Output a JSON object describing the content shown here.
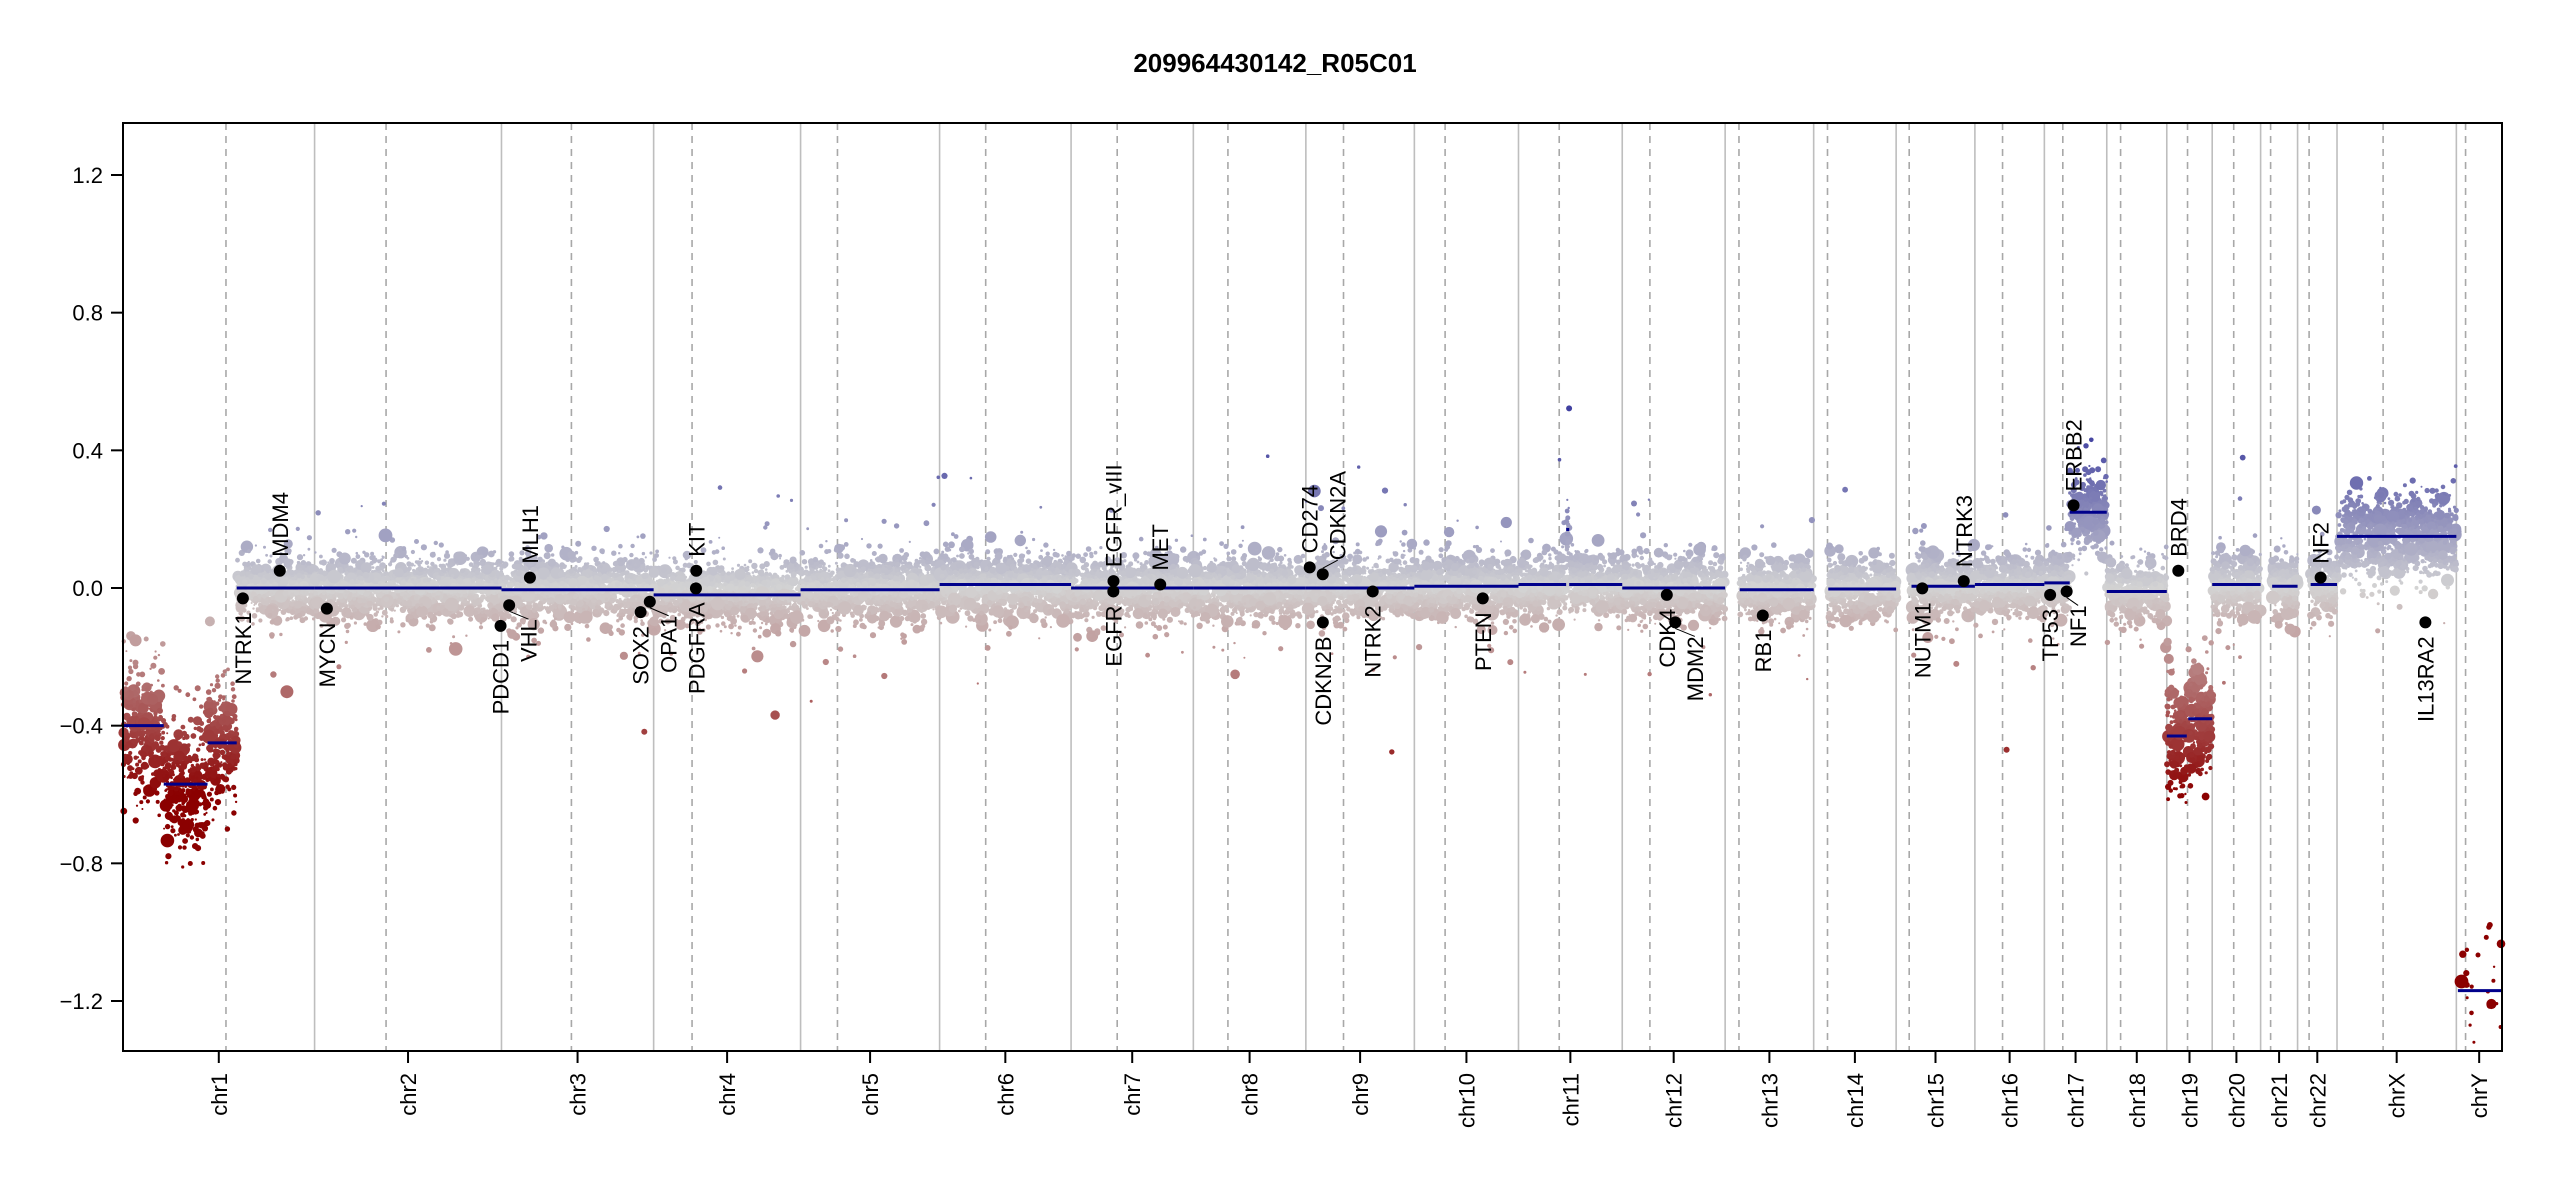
{
  "chart_data": {
    "type": "scatter",
    "title": "209964430142_R05C01",
    "xlabel": "",
    "ylabel": "",
    "ylim": [
      -1.35,
      1.35
    ],
    "yticks": [
      1.2,
      0.8,
      0.4,
      0.0,
      -0.4,
      -0.8,
      -1.2
    ],
    "ytick_labels": [
      "1.2",
      "0.8",
      "0.4",
      "0.0",
      "−0.4",
      "−0.8",
      "−1.2"
    ],
    "grid": false,
    "chromosomes": [
      {
        "name": "chr1",
        "length_mb": 249.3,
        "centromere_mb": 134
      },
      {
        "name": "chr2",
        "length_mb": 243.2,
        "centromere_mb": 93
      },
      {
        "name": "chr3",
        "length_mb": 198.0,
        "centromere_mb": 91
      },
      {
        "name": "chr4",
        "length_mb": 191.2,
        "centromere_mb": 50
      },
      {
        "name": "chr5",
        "length_mb": 180.9,
        "centromere_mb": 48
      },
      {
        "name": "chr6",
        "length_mb": 171.1,
        "centromere_mb": 60
      },
      {
        "name": "chr7",
        "length_mb": 159.1,
        "centromere_mb": 60
      },
      {
        "name": "chr8",
        "length_mb": 146.4,
        "centromere_mb": 45
      },
      {
        "name": "chr9",
        "length_mb": 141.2,
        "centromere_mb": 49
      },
      {
        "name": "chr10",
        "length_mb": 135.5,
        "centromere_mb": 40
      },
      {
        "name": "chr11",
        "length_mb": 135.0,
        "centromere_mb": 53
      },
      {
        "name": "chr12",
        "length_mb": 133.9,
        "centromere_mb": 36
      },
      {
        "name": "chr13",
        "length_mb": 115.2,
        "centromere_mb": 18
      },
      {
        "name": "chr14",
        "length_mb": 107.3,
        "centromere_mb": 18
      },
      {
        "name": "chr15",
        "length_mb": 102.5,
        "centromere_mb": 17
      },
      {
        "name": "chr16",
        "length_mb": 90.4,
        "centromere_mb": 36
      },
      {
        "name": "chr17",
        "length_mb": 81.2,
        "centromere_mb": 24
      },
      {
        "name": "chr18",
        "length_mb": 78.1,
        "centromere_mb": 18
      },
      {
        "name": "chr19",
        "length_mb": 59.1,
        "centromere_mb": 27
      },
      {
        "name": "chr20",
        "length_mb": 63.0,
        "centromere_mb": 28
      },
      {
        "name": "chr21",
        "length_mb": 48.1,
        "centromere_mb": 13
      },
      {
        "name": "chr22",
        "length_mb": 51.3,
        "centromere_mb": 15
      },
      {
        "name": "chrX",
        "length_mb": 155.3,
        "centromere_mb": 60
      },
      {
        "name": "chrY",
        "length_mb": 59.4,
        "centromere_mb": 12
      }
    ],
    "segments": [
      {
        "chr": "chr1",
        "start": 0,
        "end": 53,
        "mean": -0.4
      },
      {
        "chr": "chr1",
        "start": 53,
        "end": 110,
        "mean": -0.57
      },
      {
        "chr": "chr1",
        "start": 110,
        "end": 148,
        "mean": -0.45
      },
      {
        "chr": "chr1",
        "start": 148,
        "end": 249.3,
        "mean": 0.0
      },
      {
        "chr": "chr2",
        "start": 0,
        "end": 243.2,
        "mean": 0.0
      },
      {
        "chr": "chr3",
        "start": 0,
        "end": 198.0,
        "mean": -0.005
      },
      {
        "chr": "chr4",
        "start": 0,
        "end": 191.2,
        "mean": -0.02
      },
      {
        "chr": "chr5",
        "start": 0,
        "end": 180.9,
        "mean": -0.005
      },
      {
        "chr": "chr6",
        "start": 0,
        "end": 171.1,
        "mean": 0.01
      },
      {
        "chr": "chr7",
        "start": 0,
        "end": 159.1,
        "mean": 0.0
      },
      {
        "chr": "chr8",
        "start": 0,
        "end": 146.4,
        "mean": 0.0
      },
      {
        "chr": "chr9",
        "start": 0,
        "end": 141.2,
        "mean": 0.0
      },
      {
        "chr": "chr10",
        "start": 0,
        "end": 135.5,
        "mean": 0.005
      },
      {
        "chr": "chr11",
        "start": 0,
        "end": 62,
        "mean": 0.01
      },
      {
        "chr": "chr11",
        "start": 62,
        "end": 66,
        "mean": 0.17
      },
      {
        "chr": "chr11",
        "start": 66,
        "end": 135.0,
        "mean": 0.01
      },
      {
        "chr": "chr12",
        "start": 0,
        "end": 133.9,
        "mean": 0.0
      },
      {
        "chr": "chr13",
        "start": 19,
        "end": 115.2,
        "mean": -0.005
      },
      {
        "chr": "chr14",
        "start": 19,
        "end": 107.3,
        "mean": -0.003
      },
      {
        "chr": "chr15",
        "start": 20,
        "end": 102.5,
        "mean": 0.005
      },
      {
        "chr": "chr16",
        "start": 0,
        "end": 90.4,
        "mean": 0.01
      },
      {
        "chr": "chr17",
        "start": 0,
        "end": 33,
        "mean": 0.015
      },
      {
        "chr": "chr17",
        "start": 33,
        "end": 81.2,
        "mean": 0.22
      },
      {
        "chr": "chr18",
        "start": 0,
        "end": 78.1,
        "mean": -0.01
      },
      {
        "chr": "chr19",
        "start": 0,
        "end": 26,
        "mean": -0.43
      },
      {
        "chr": "chr19",
        "start": 28,
        "end": 59.1,
        "mean": -0.38
      },
      {
        "chr": "chr20",
        "start": 0,
        "end": 63.0,
        "mean": 0.01
      },
      {
        "chr": "chr21",
        "start": 15,
        "end": 48.1,
        "mean": 0.005
      },
      {
        "chr": "chr22",
        "start": 17,
        "end": 51.3,
        "mean": 0.01
      },
      {
        "chr": "chrX",
        "start": 0,
        "end": 155.3,
        "mean": 0.15
      },
      {
        "chr": "chrY",
        "start": 2,
        "end": 59.4,
        "mean": -1.17
      }
    ],
    "genes": [
      {
        "name": "NTRK1",
        "chr": "chr1",
        "pos": 156,
        "value": -0.03
      },
      {
        "name": "MDM4",
        "chr": "chr1",
        "pos": 204,
        "value": 0.05
      },
      {
        "name": "MYCN",
        "chr": "chr2",
        "pos": 16,
        "value": -0.06
      },
      {
        "name": "PDCD1",
        "chr": "chr2",
        "pos": 242,
        "value": -0.11
      },
      {
        "name": "VHL",
        "chr": "chr3",
        "pos": 10,
        "value": -0.05
      },
      {
        "name": "MLH1",
        "chr": "chr3",
        "pos": 37,
        "value": 0.03
      },
      {
        "name": "SOX2",
        "chr": "chr3",
        "pos": 181,
        "value": -0.07
      },
      {
        "name": "OPA1",
        "chr": "chr3",
        "pos": 193,
        "value": -0.04
      },
      {
        "name": "PDGFRA",
        "chr": "chr4",
        "pos": 55,
        "value": -0.001
      },
      {
        "name": "KIT",
        "chr": "chr4",
        "pos": 55.5,
        "value": 0.05
      },
      {
        "name": "EGFR",
        "chr": "chr7",
        "pos": 55,
        "value": -0.01
      },
      {
        "name": "EGFR_vIII",
        "chr": "chr7",
        "pos": 55.2,
        "value": 0.02
      },
      {
        "name": "MET",
        "chr": "chr7",
        "pos": 116,
        "value": 0.01
      },
      {
        "name": "CD274",
        "chr": "chr9",
        "pos": 5,
        "value": 0.06
      },
      {
        "name": "CDKN2A",
        "chr": "chr9",
        "pos": 22,
        "value": 0.04
      },
      {
        "name": "CDKN2B",
        "chr": "chr9",
        "pos": 22.1,
        "value": -0.1
      },
      {
        "name": "NTRK2",
        "chr": "chr9",
        "pos": 87,
        "value": -0.01
      },
      {
        "name": "PTEN",
        "chr": "chr10",
        "pos": 89,
        "value": -0.03
      },
      {
        "name": "CDK4",
        "chr": "chr12",
        "pos": 58,
        "value": -0.02
      },
      {
        "name": "MDM2",
        "chr": "chr12",
        "pos": 69,
        "value": -0.1
      },
      {
        "name": "RB1",
        "chr": "chr13",
        "pos": 49,
        "value": -0.08
      },
      {
        "name": "NUTM1",
        "chr": "chr15",
        "pos": 34,
        "value": -0.001
      },
      {
        "name": "NTRK3",
        "chr": "chr15",
        "pos": 88,
        "value": 0.02
      },
      {
        "name": "TP53",
        "chr": "chr17",
        "pos": 7.5,
        "value": -0.02
      },
      {
        "name": "NF1",
        "chr": "chr17",
        "pos": 29,
        "value": -0.01
      },
      {
        "name": "ERBB2",
        "chr": "chr17",
        "pos": 38,
        "value": 0.24
      },
      {
        "name": "BRD4",
        "chr": "chr19",
        "pos": 15,
        "value": 0.05
      },
      {
        "name": "NF2",
        "chr": "chr22",
        "pos": 30,
        "value": 0.03
      },
      {
        "name": "IL13RA2",
        "chr": "chrX",
        "pos": 115,
        "value": -0.1
      }
    ],
    "colors": {
      "low": "#8b0000",
      "mid": "#d3d3d3",
      "high": "#4040a0",
      "segment": "#00008b",
      "boundary": "#bebebe",
      "centromere": "#a8a8a8",
      "gene": "#000000"
    }
  }
}
